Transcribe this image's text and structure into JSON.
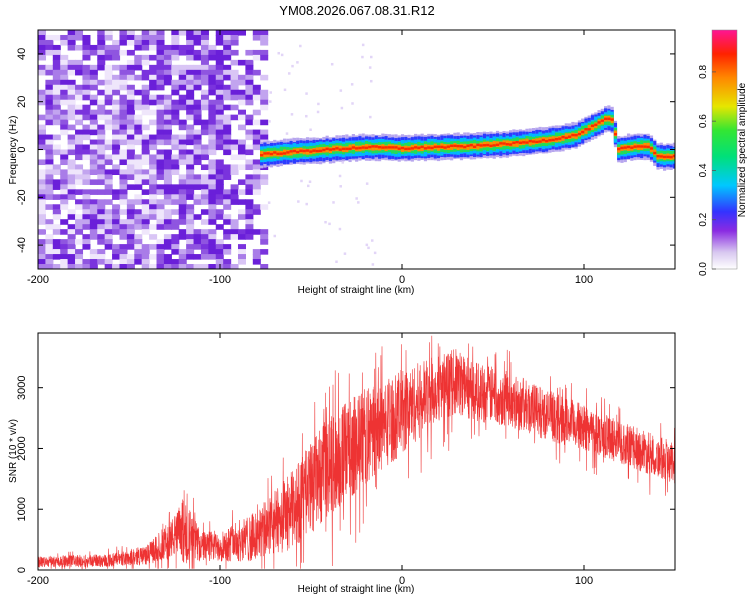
{
  "title": "YM08.2026.067.08.31.R12",
  "chart_data": [
    {
      "type": "heatmap",
      "name": "spectrogram",
      "xlabel": "Height of straight line (km)",
      "ylabel": "Frequency (Hz)",
      "xlim": [
        -200,
        150
      ],
      "ylim": [
        -50,
        50
      ],
      "xticks": [
        -200,
        -100,
        0,
        100
      ],
      "yticks": [
        -40,
        -20,
        0,
        20,
        40
      ],
      "ridge": {
        "x": [
          -78,
          -60,
          -40,
          -20,
          0,
          20,
          40,
          60,
          80,
          95,
          105,
          112,
          115,
          118,
          125,
          135,
          140,
          150
        ],
        "freq_hz": [
          -2,
          -1,
          0,
          1,
          0.5,
          1,
          1.5,
          2.5,
          4,
          6,
          10,
          13,
          12,
          0,
          1,
          1.5,
          -3,
          -3
        ]
      },
      "noise_region_x": [
        -200,
        -75
      ],
      "colorbar": {
        "label": "Normalized spectral amplitude",
        "ticks": [
          "0.0",
          "0.2",
          "0.4",
          "0.6",
          "0.8"
        ],
        "range": [
          0,
          0.97
        ]
      }
    },
    {
      "type": "line",
      "name": "snr",
      "xlabel": "Height of straight line (km)",
      "ylabel": "SNR (10 * v/v)",
      "xlim": [
        -200,
        150
      ],
      "ylim": [
        0,
        3900
      ],
      "xticks": [
        -200,
        -100,
        0,
        100
      ],
      "yticks": [
        0,
        1000,
        2000,
        3000
      ],
      "color": "#ee3333",
      "envelope": {
        "x": [
          -200,
          -160,
          -140,
          -125,
          -120,
          -110,
          -100,
          -80,
          -60,
          -40,
          -20,
          0,
          20,
          30,
          40,
          60,
          80,
          100,
          120,
          150
        ],
        "mean": [
          130,
          160,
          250,
          550,
          650,
          380,
          400,
          550,
          1000,
          1700,
          2200,
          2600,
          3000,
          3100,
          2950,
          2800,
          2550,
          2350,
          2100,
          1750
        ],
        "amplitude": [
          90,
          110,
          160,
          350,
          550,
          250,
          260,
          420,
          650,
          850,
          800,
          700,
          550,
          550,
          500,
          450,
          420,
          380,
          350,
          350
        ]
      }
    }
  ]
}
